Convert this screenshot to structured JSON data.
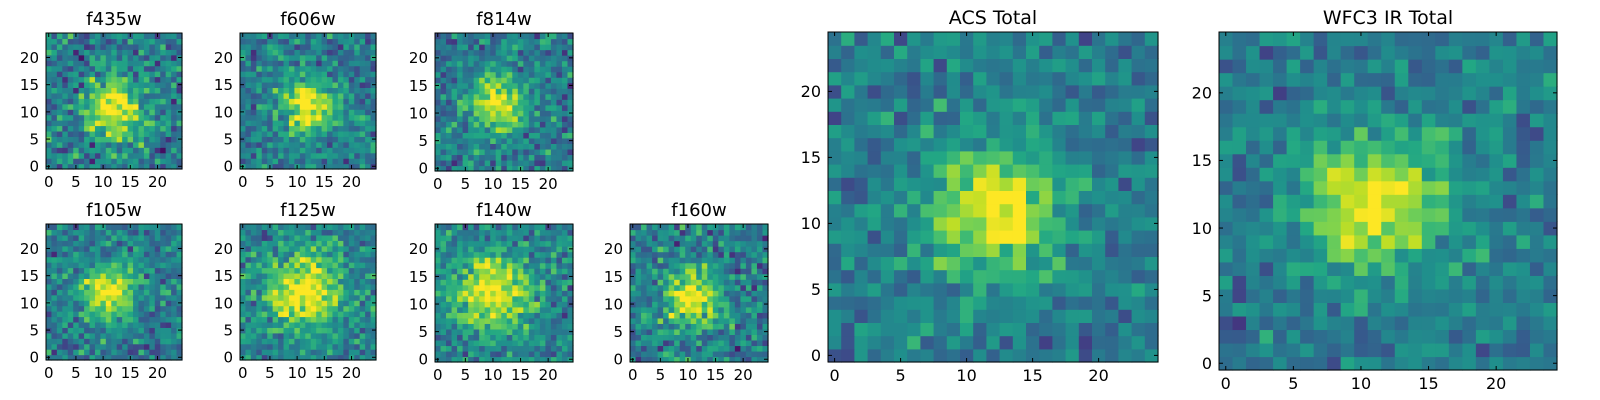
{
  "chart_data": [
    {
      "type": "heatmap",
      "title": "f435w",
      "xticks": [
        "0",
        "5",
        "10",
        "15",
        "20"
      ],
      "yticks": [
        "0",
        "5",
        "10",
        "15",
        "20"
      ],
      "grid_size": [
        25,
        25
      ],
      "colormap": "viridis",
      "source_peak": [
        12,
        11
      ],
      "source_width": 4.0,
      "noise": 0.55
    },
    {
      "type": "heatmap",
      "title": "f606w",
      "xticks": [
        "0",
        "5",
        "10",
        "15",
        "20"
      ],
      "yticks": [
        "0",
        "5",
        "10",
        "15",
        "20"
      ],
      "grid_size": [
        25,
        25
      ],
      "colormap": "viridis",
      "source_peak": [
        12,
        11
      ],
      "source_width": 3.5,
      "noise": 0.45
    },
    {
      "type": "heatmap",
      "title": "f814w",
      "xticks": [
        "0",
        "5",
        "10",
        "15",
        "20"
      ],
      "yticks": [
        "0",
        "5",
        "10",
        "15",
        "20"
      ],
      "grid_size": [
        25,
        25
      ],
      "colormap": "viridis",
      "source_peak": [
        11,
        12
      ],
      "source_width": 3.5,
      "noise": 0.45
    },
    {
      "type": "heatmap",
      "title": "f105w",
      "xticks": [
        "0",
        "5",
        "10",
        "15",
        "20"
      ],
      "yticks": [
        "0",
        "5",
        "10",
        "15",
        "20"
      ],
      "grid_size": [
        25,
        25
      ],
      "colormap": "viridis",
      "source_peak": [
        11,
        12
      ],
      "source_width": 3.5,
      "noise": 0.45
    },
    {
      "type": "heatmap",
      "title": "f125w",
      "xticks": [
        "0",
        "5",
        "10",
        "15",
        "20"
      ],
      "yticks": [
        "0",
        "5",
        "10",
        "15",
        "20"
      ],
      "grid_size": [
        25,
        25
      ],
      "colormap": "viridis",
      "source_peak": [
        11,
        12
      ],
      "source_width": 5.0,
      "noise": 0.45
    },
    {
      "type": "heatmap",
      "title": "f140w",
      "xticks": [
        "0",
        "5",
        "10",
        "15",
        "20"
      ],
      "yticks": [
        "0",
        "5",
        "10",
        "15",
        "20"
      ],
      "grid_size": [
        25,
        25
      ],
      "colormap": "viridis",
      "source_peak": [
        10,
        12
      ],
      "source_width": 5.0,
      "noise": 0.45
    },
    {
      "type": "heatmap",
      "title": "f160w",
      "xticks": [
        "0",
        "5",
        "10",
        "15",
        "20"
      ],
      "yticks": [
        "0",
        "5",
        "10",
        "15",
        "20"
      ],
      "grid_size": [
        25,
        25
      ],
      "colormap": "viridis",
      "source_peak": [
        11,
        11
      ],
      "source_width": 3.5,
      "noise": 0.5
    },
    {
      "type": "heatmap",
      "title": "ACS Total",
      "xticks": [
        "0",
        "5",
        "10",
        "15",
        "20"
      ],
      "yticks": [
        "0",
        "5",
        "10",
        "15",
        "20"
      ],
      "grid_size": [
        25,
        25
      ],
      "colormap": "viridis",
      "source_peak": [
        12,
        11
      ],
      "source_width": 3.5,
      "noise": 0.35
    },
    {
      "type": "heatmap",
      "title": "WFC3 IR Total",
      "xticks": [
        "0",
        "5",
        "10",
        "15",
        "20"
      ],
      "yticks": [
        "0",
        "5",
        "10",
        "15",
        "20"
      ],
      "grid_size": [
        25,
        25
      ],
      "colormap": "viridis",
      "source_peak": [
        11,
        12
      ],
      "source_width": 3.5,
      "noise": 0.35
    }
  ]
}
